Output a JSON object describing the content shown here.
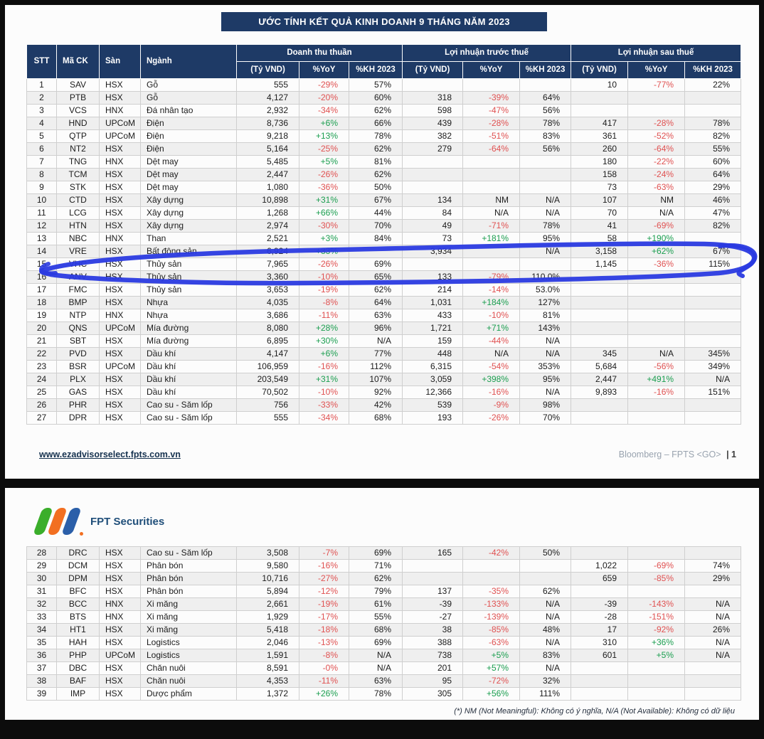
{
  "title": "ƯỚC TÍNH KẾT QUẢ KINH DOANH 9 THÁNG NĂM 2023",
  "table": {
    "headers": {
      "stt": "STT",
      "ma_ck": "Mã CK",
      "san": "Sàn",
      "nganh": "Ngành",
      "groups": [
        {
          "label": "Doanh thu thuần",
          "sub": [
            "(Tỷ VND)",
            "%YoY",
            "%KH 2023"
          ]
        },
        {
          "label": "Lợi nhuận trước thuế",
          "sub": [
            "(Tỷ VND)",
            "%YoY",
            "%KH 2023"
          ]
        },
        {
          "label": "Lợi nhuận sau thuế",
          "sub": [
            "(Tỷ VND)",
            "%YoY",
            "%KH 2023"
          ]
        }
      ]
    },
    "rows_page1": [
      [
        "1",
        "SAV",
        "HSX",
        "Gỗ",
        "555",
        "-29%",
        "57%",
        "",
        "",
        "",
        "10",
        "-77%",
        "22%"
      ],
      [
        "2",
        "PTB",
        "HSX",
        "Gỗ",
        "4,127",
        "-20%",
        "60%",
        "318",
        "-39%",
        "64%",
        "",
        "",
        ""
      ],
      [
        "3",
        "VCS",
        "HNX",
        "Đá nhân tạo",
        "2,932",
        "-34%",
        "62%",
        "598",
        "-47%",
        "56%",
        "",
        "",
        ""
      ],
      [
        "4",
        "HND",
        "UPCoM",
        "Điện",
        "8,736",
        "+6%",
        "66%",
        "439",
        "-28%",
        "78%",
        "417",
        "-28%",
        "78%"
      ],
      [
        "5",
        "QTP",
        "UPCoM",
        "Điện",
        "9,218",
        "+13%",
        "78%",
        "382",
        "-51%",
        "83%",
        "361",
        "-52%",
        "82%"
      ],
      [
        "6",
        "NT2",
        "HSX",
        "Điện",
        "5,164",
        "-25%",
        "62%",
        "279",
        "-64%",
        "56%",
        "260",
        "-64%",
        "55%"
      ],
      [
        "7",
        "TNG",
        "HNX",
        "Dệt may",
        "5,485",
        "+5%",
        "81%",
        "",
        "",
        "",
        "180",
        "-22%",
        "60%"
      ],
      [
        "8",
        "TCM",
        "HSX",
        "Dệt may",
        "2,447",
        "-26%",
        "62%",
        "",
        "",
        "",
        "158",
        "-24%",
        "64%"
      ],
      [
        "9",
        "STK",
        "HSX",
        "Dệt may",
        "1,080",
        "-36%",
        "50%",
        "",
        "",
        "",
        "73",
        "-63%",
        "29%"
      ],
      [
        "10",
        "CTD",
        "HSX",
        "Xây dựng",
        "10,898",
        "+31%",
        "67%",
        "134",
        "NM",
        "N/A",
        "107",
        "NM",
        "46%"
      ],
      [
        "11",
        "LCG",
        "HSX",
        "Xây dựng",
        "1,268",
        "+66%",
        "44%",
        "84",
        "N/A",
        "N/A",
        "70",
        "N/A",
        "47%"
      ],
      [
        "12",
        "HTN",
        "HSX",
        "Xây dựng",
        "2,974",
        "-30%",
        "70%",
        "49",
        "-71%",
        "78%",
        "41",
        "-69%",
        "82%"
      ],
      [
        "13",
        "NBC",
        "HNX",
        "Than",
        "2,521",
        "+3%",
        "84%",
        "73",
        "+181%",
        "95%",
        "58",
        "+190%",
        ""
      ],
      [
        "14",
        "VRE",
        "HSX",
        "Bất động sản",
        "6,924",
        "+33%",
        "",
        "3,934",
        "",
        "N/A",
        "3,158",
        "+62%",
        "67%"
      ],
      [
        "15",
        "VHC",
        "HSX",
        "Thủy sản",
        "7,965",
        "-26%",
        "69%",
        "",
        "",
        "",
        "1,145",
        "-36%",
        "115%"
      ],
      [
        "16",
        "ANV",
        "HSX",
        "Thủy sản",
        "3,360",
        "-10%",
        "65%",
        "133",
        "-79%",
        "110.0%",
        "",
        "",
        ""
      ],
      [
        "17",
        "FMC",
        "HSX",
        "Thủy sản",
        "3,653",
        "-19%",
        "62%",
        "214",
        "-14%",
        "53.0%",
        "",
        "",
        ""
      ],
      [
        "18",
        "BMP",
        "HSX",
        "Nhựa",
        "4,035",
        "-8%",
        "64%",
        "1,031",
        "+184%",
        "127%",
        "",
        "",
        ""
      ],
      [
        "19",
        "NTP",
        "HNX",
        "Nhựa",
        "3,686",
        "-11%",
        "63%",
        "433",
        "-10%",
        "81%",
        "",
        "",
        ""
      ],
      [
        "20",
        "QNS",
        "UPCoM",
        "Mía đường",
        "8,080",
        "+28%",
        "96%",
        "1,721",
        "+71%",
        "143%",
        "",
        "",
        ""
      ],
      [
        "21",
        "SBT",
        "HSX",
        "Mía đường",
        "6,895",
        "+30%",
        "N/A",
        "159",
        "-44%",
        "N/A",
        "",
        "",
        ""
      ],
      [
        "22",
        "PVD",
        "HSX",
        "Dầu khí",
        "4,147",
        "+6%",
        "77%",
        "448",
        "N/A",
        "N/A",
        "345",
        "N/A",
        "345%"
      ],
      [
        "23",
        "BSR",
        "UPCoM",
        "Dầu khí",
        "106,959",
        "-16%",
        "112%",
        "6,315",
        "-54%",
        "353%",
        "5,684",
        "-56%",
        "349%"
      ],
      [
        "24",
        "PLX",
        "HSX",
        "Dầu khí",
        "203,549",
        "+31%",
        "107%",
        "3,059",
        "+398%",
        "95%",
        "2,447",
        "+491%",
        "N/A"
      ],
      [
        "25",
        "GAS",
        "HSX",
        "Dầu khí",
        "70,502",
        "-10%",
        "92%",
        "12,366",
        "-16%",
        "N/A",
        "9,893",
        "-16%",
        "151%"
      ],
      [
        "26",
        "PHR",
        "HSX",
        "Cao su - Săm lốp",
        "756",
        "-33%",
        "42%",
        "539",
        "-9%",
        "98%",
        "",
        "",
        ""
      ],
      [
        "27",
        "DPR",
        "HSX",
        "Cao su - Săm lốp",
        "555",
        "-34%",
        "68%",
        "193",
        "-26%",
        "70%",
        "",
        "",
        ""
      ]
    ],
    "rows_page2": [
      [
        "28",
        "DRC",
        "HSX",
        "Cao su - Săm lốp",
        "3,508",
        "-7%",
        "69%",
        "165",
        "-42%",
        "50%",
        "",
        "",
        ""
      ],
      [
        "29",
        "DCM",
        "HSX",
        "Phân bón",
        "9,580",
        "-16%",
        "71%",
        "",
        "",
        "",
        "1,022",
        "-69%",
        "74%"
      ],
      [
        "30",
        "DPM",
        "HSX",
        "Phân bón",
        "10,716",
        "-27%",
        "62%",
        "",
        "",
        "",
        "659",
        "-85%",
        "29%"
      ],
      [
        "31",
        "BFC",
        "HSX",
        "Phân bón",
        "5,894",
        "-12%",
        "79%",
        "137",
        "-35%",
        "62%",
        "",
        "",
        ""
      ],
      [
        "32",
        "BCC",
        "HNX",
        "Xi măng",
        "2,661",
        "-19%",
        "61%",
        "-39",
        "-133%",
        "N/A",
        "-39",
        "-143%",
        "N/A"
      ],
      [
        "33",
        "BTS",
        "HNX",
        "Xi măng",
        "1,929",
        "-17%",
        "55%",
        "-27",
        "-139%",
        "N/A",
        "-28",
        "-151%",
        "N/A"
      ],
      [
        "34",
        "HT1",
        "HSX",
        "Xi măng",
        "5,418",
        "-18%",
        "68%",
        "38",
        "-85%",
        "48%",
        "17",
        "-92%",
        "26%"
      ],
      [
        "35",
        "HAH",
        "HSX",
        "Logistics",
        "2,046",
        "-13%",
        "69%",
        "388",
        "-63%",
        "N/A",
        "310",
        "+36%",
        "N/A"
      ],
      [
        "36",
        "PHP",
        "UPCoM",
        "Logistics",
        "1,591",
        "-8%",
        "N/A",
        "738",
        "+5%",
        "83%",
        "601",
        "+5%",
        "N/A"
      ],
      [
        "37",
        "DBC",
        "HSX",
        "Chăn nuôi",
        "8,591",
        "-0%",
        "N/A",
        "201",
        "+57%",
        "N/A",
        "",
        "",
        ""
      ],
      [
        "38",
        "BAF",
        "HSX",
        "Chăn nuôi",
        "4,353",
        "-11%",
        "63%",
        "95",
        "-72%",
        "32%",
        "",
        "",
        ""
      ],
      [
        "39",
        "IMP",
        "HSX",
        "Dược phẩm",
        "1,372",
        "+26%",
        "78%",
        "305",
        "+56%",
        "111%",
        "",
        "",
        ""
      ]
    ]
  },
  "footer_page1": {
    "url": "www.ezadvisorselect.fpts.com.vn",
    "bloomberg": "Bloomberg – FPTS <GO>",
    "page": "| 1"
  },
  "logo": {
    "text": "FPT Securities"
  },
  "footnote": "(*) NM (Not Meaningful): Không có ý nghĩa, N/A (Not Available): Không có dữ liệu",
  "colors": {
    "header_navy": "#1e3a66",
    "positive_green": "#1a9e4f",
    "negative_red": "#e05151",
    "alt_row": "#efefef",
    "pen_blue": "#2a3ae0"
  }
}
